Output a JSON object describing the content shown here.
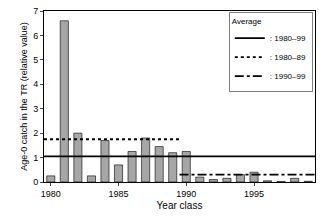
{
  "chart_data": {
    "type": "bar",
    "xlabel": "Year class",
    "ylabel": "Age-0 catch in the TR (relative value)",
    "legend_title": "Average",
    "legend": "upper right",
    "grid": false,
    "x": [
      1980,
      1981,
      1982,
      1983,
      1984,
      1985,
      1986,
      1987,
      1988,
      1989,
      1990,
      1991,
      1992,
      1993,
      1994,
      1995,
      1996,
      1997,
      1998,
      1999
    ],
    "xlim": [
      1979.5,
      1999.5
    ],
    "xticks": [
      1980,
      1985,
      1990,
      1995
    ],
    "ylim": [
      0,
      7
    ],
    "yticks": [
      0,
      1,
      2,
      3,
      4,
      5,
      6,
      7
    ],
    "series": [
      {
        "type": "bar",
        "color": "#a6a6a6",
        "values": [
          0.25,
          6.6,
          2.0,
          0.25,
          1.7,
          0.7,
          1.25,
          1.8,
          1.45,
          1.2,
          1.25,
          0.2,
          0.1,
          0.15,
          0.3,
          0.4,
          0.05,
          0.02,
          0.15,
          0.03
        ]
      },
      {
        "type": "line",
        "name": ": 1980–99",
        "color": "#000000",
        "line_style": "solid",
        "x": [
          1979.5,
          1999.5
        ],
        "values": [
          1.05,
          1.05
        ]
      },
      {
        "type": "line",
        "name": ": 1980–89",
        "color": "#000000",
        "line_style": "dotted",
        "x": [
          1979.5,
          1989.5
        ],
        "values": [
          1.75,
          1.75
        ]
      },
      {
        "type": "line",
        "name": ": 1990–99",
        "color": "#000000",
        "line_style": "dashdot",
        "x": [
          1989.5,
          1999.5
        ],
        "values": [
          0.3,
          0.3
        ]
      }
    ]
  }
}
